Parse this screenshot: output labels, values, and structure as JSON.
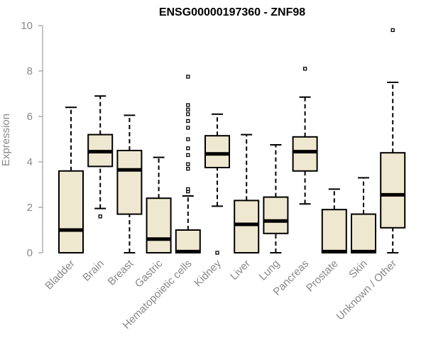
{
  "chart_data": {
    "type": "boxplot",
    "title": "ENSG00000197360 - ZNF98",
    "ylabel": "Expression",
    "ylim": [
      0,
      10
    ],
    "yticks": [
      0,
      2,
      4,
      6,
      8,
      10
    ],
    "box_fill": "#efe8d0",
    "line_color": "#000000",
    "categories": [
      "Bladder",
      "Brain",
      "Breast",
      "Gastric",
      "Hematopoietic cells",
      "Kidney",
      "Liver",
      "Lung",
      "Pancreas",
      "Prostate",
      "Skin",
      "Unknown / Other"
    ],
    "boxes": [
      {
        "q1": 0.0,
        "median": 1.0,
        "q3": 3.6,
        "whisker_low": 0.0,
        "whisker_high": 6.4,
        "outliers": []
      },
      {
        "q1": 3.8,
        "median": 4.45,
        "q3": 5.2,
        "whisker_low": 1.95,
        "whisker_high": 6.9,
        "outliers": [
          1.6
        ]
      },
      {
        "q1": 1.7,
        "median": 3.65,
        "q3": 4.5,
        "whisker_low": 0.0,
        "whisker_high": 6.05,
        "outliers": []
      },
      {
        "q1": 0.0,
        "median": 0.6,
        "q3": 2.4,
        "whisker_low": 0.0,
        "whisker_high": 4.2,
        "outliers": []
      },
      {
        "q1": 0.0,
        "median": 0.05,
        "q3": 1.0,
        "whisker_low": 0.0,
        "whisker_high": 2.5,
        "outliers": [
          2.7,
          2.8,
          3.7,
          3.9,
          4.3,
          4.6,
          5.0,
          5.5,
          5.8,
          6.1,
          6.3,
          6.5,
          7.75
        ]
      },
      {
        "q1": 3.75,
        "median": 4.35,
        "q3": 5.15,
        "whisker_low": 2.05,
        "whisker_high": 6.1,
        "outliers": [
          0.0
        ]
      },
      {
        "q1": 0.0,
        "median": 1.25,
        "q3": 2.3,
        "whisker_low": 0.0,
        "whisker_high": 5.2,
        "outliers": []
      },
      {
        "q1": 0.85,
        "median": 1.4,
        "q3": 2.45,
        "whisker_low": 0.0,
        "whisker_high": 4.75,
        "outliers": []
      },
      {
        "q1": 3.6,
        "median": 4.45,
        "q3": 5.1,
        "whisker_low": 2.15,
        "whisker_high": 6.85,
        "outliers": [
          8.1
        ]
      },
      {
        "q1": 0.0,
        "median": 0.05,
        "q3": 1.9,
        "whisker_low": 0.0,
        "whisker_high": 2.8,
        "outliers": []
      },
      {
        "q1": 0.0,
        "median": 0.05,
        "q3": 1.7,
        "whisker_low": 0.0,
        "whisker_high": 3.3,
        "outliers": []
      },
      {
        "q1": 1.1,
        "median": 2.55,
        "q3": 4.4,
        "whisker_low": 0.0,
        "whisker_high": 7.5,
        "outliers": [
          9.8
        ]
      }
    ]
  }
}
